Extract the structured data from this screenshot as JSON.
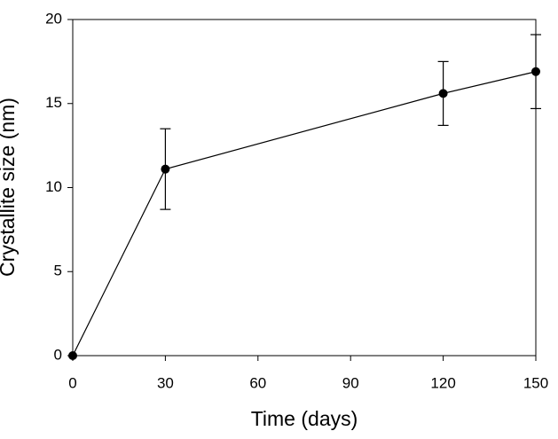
{
  "chart_data": {
    "type": "line",
    "x_label": "Time (days)",
    "y_label": "Crystallite size (nm)",
    "x": [
      0,
      30,
      120,
      150
    ],
    "values": [
      0,
      11.1,
      15.6,
      16.9
    ],
    "errors": [
      null,
      2.4,
      1.9,
      2.2
    ],
    "color": "#000000",
    "xlim": [
      0,
      150
    ],
    "xticks": [
      0,
      30,
      60,
      90,
      120,
      150
    ],
    "ylim": [
      0,
      20
    ],
    "yticks": [
      0,
      5,
      10,
      15,
      20
    ],
    "grid": false
  }
}
